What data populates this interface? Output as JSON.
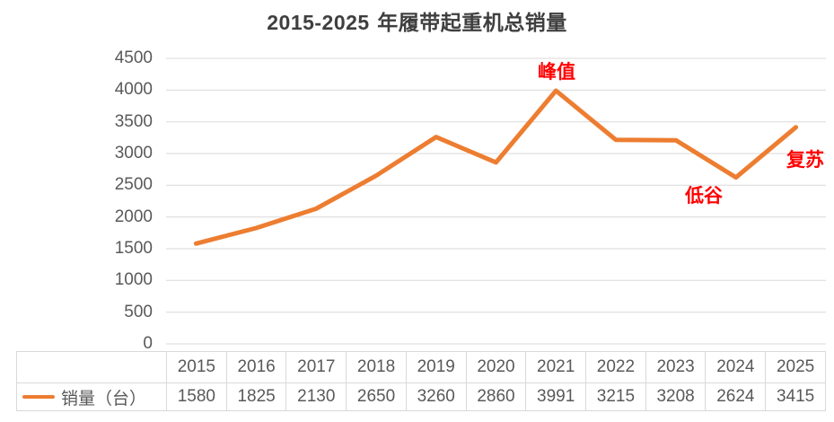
{
  "title": {
    "prefix": "2015-2025",
    "suffix": " 年履带起重机总销量"
  },
  "legend": {
    "label": "销量（台）"
  },
  "annotations": {
    "peak": "峰值",
    "trough": "低谷",
    "recovery": "复苏"
  },
  "colors": {
    "line": "#ed7d31",
    "annotation_text": "#ff0000",
    "gridline": "#d9d9d9",
    "table_border": "#d9d9d9",
    "axis_text": "#595959",
    "title_text": "#3f3f3f"
  },
  "chart_data": {
    "type": "line",
    "title": "2015-2025 年履带起重机总销量",
    "categories": [
      "2015",
      "2016",
      "2017",
      "2018",
      "2019",
      "2020",
      "2021",
      "2022",
      "2023",
      "2024",
      "2025"
    ],
    "series": [
      {
        "name": "销量（台）",
        "values": [
          1580,
          1825,
          2130,
          2650,
          3260,
          2860,
          3991,
          3215,
          3208,
          2624,
          3415
        ]
      }
    ],
    "xlabel": "",
    "ylabel": "",
    "ylim": [
      0,
      4500
    ],
    "yticks": [
      0,
      500,
      1000,
      1500,
      2000,
      2500,
      3000,
      3500,
      4000,
      4500
    ],
    "grid": "horizontal",
    "legend_position": "bottom-left-table",
    "data_table_shown": true,
    "annotations": [
      {
        "text": "峰值",
        "category": "2021",
        "value": 3991
      },
      {
        "text": "低谷",
        "category": "2024",
        "value": 2624
      },
      {
        "text": "复苏",
        "category": "2025",
        "value": 3415
      }
    ]
  }
}
